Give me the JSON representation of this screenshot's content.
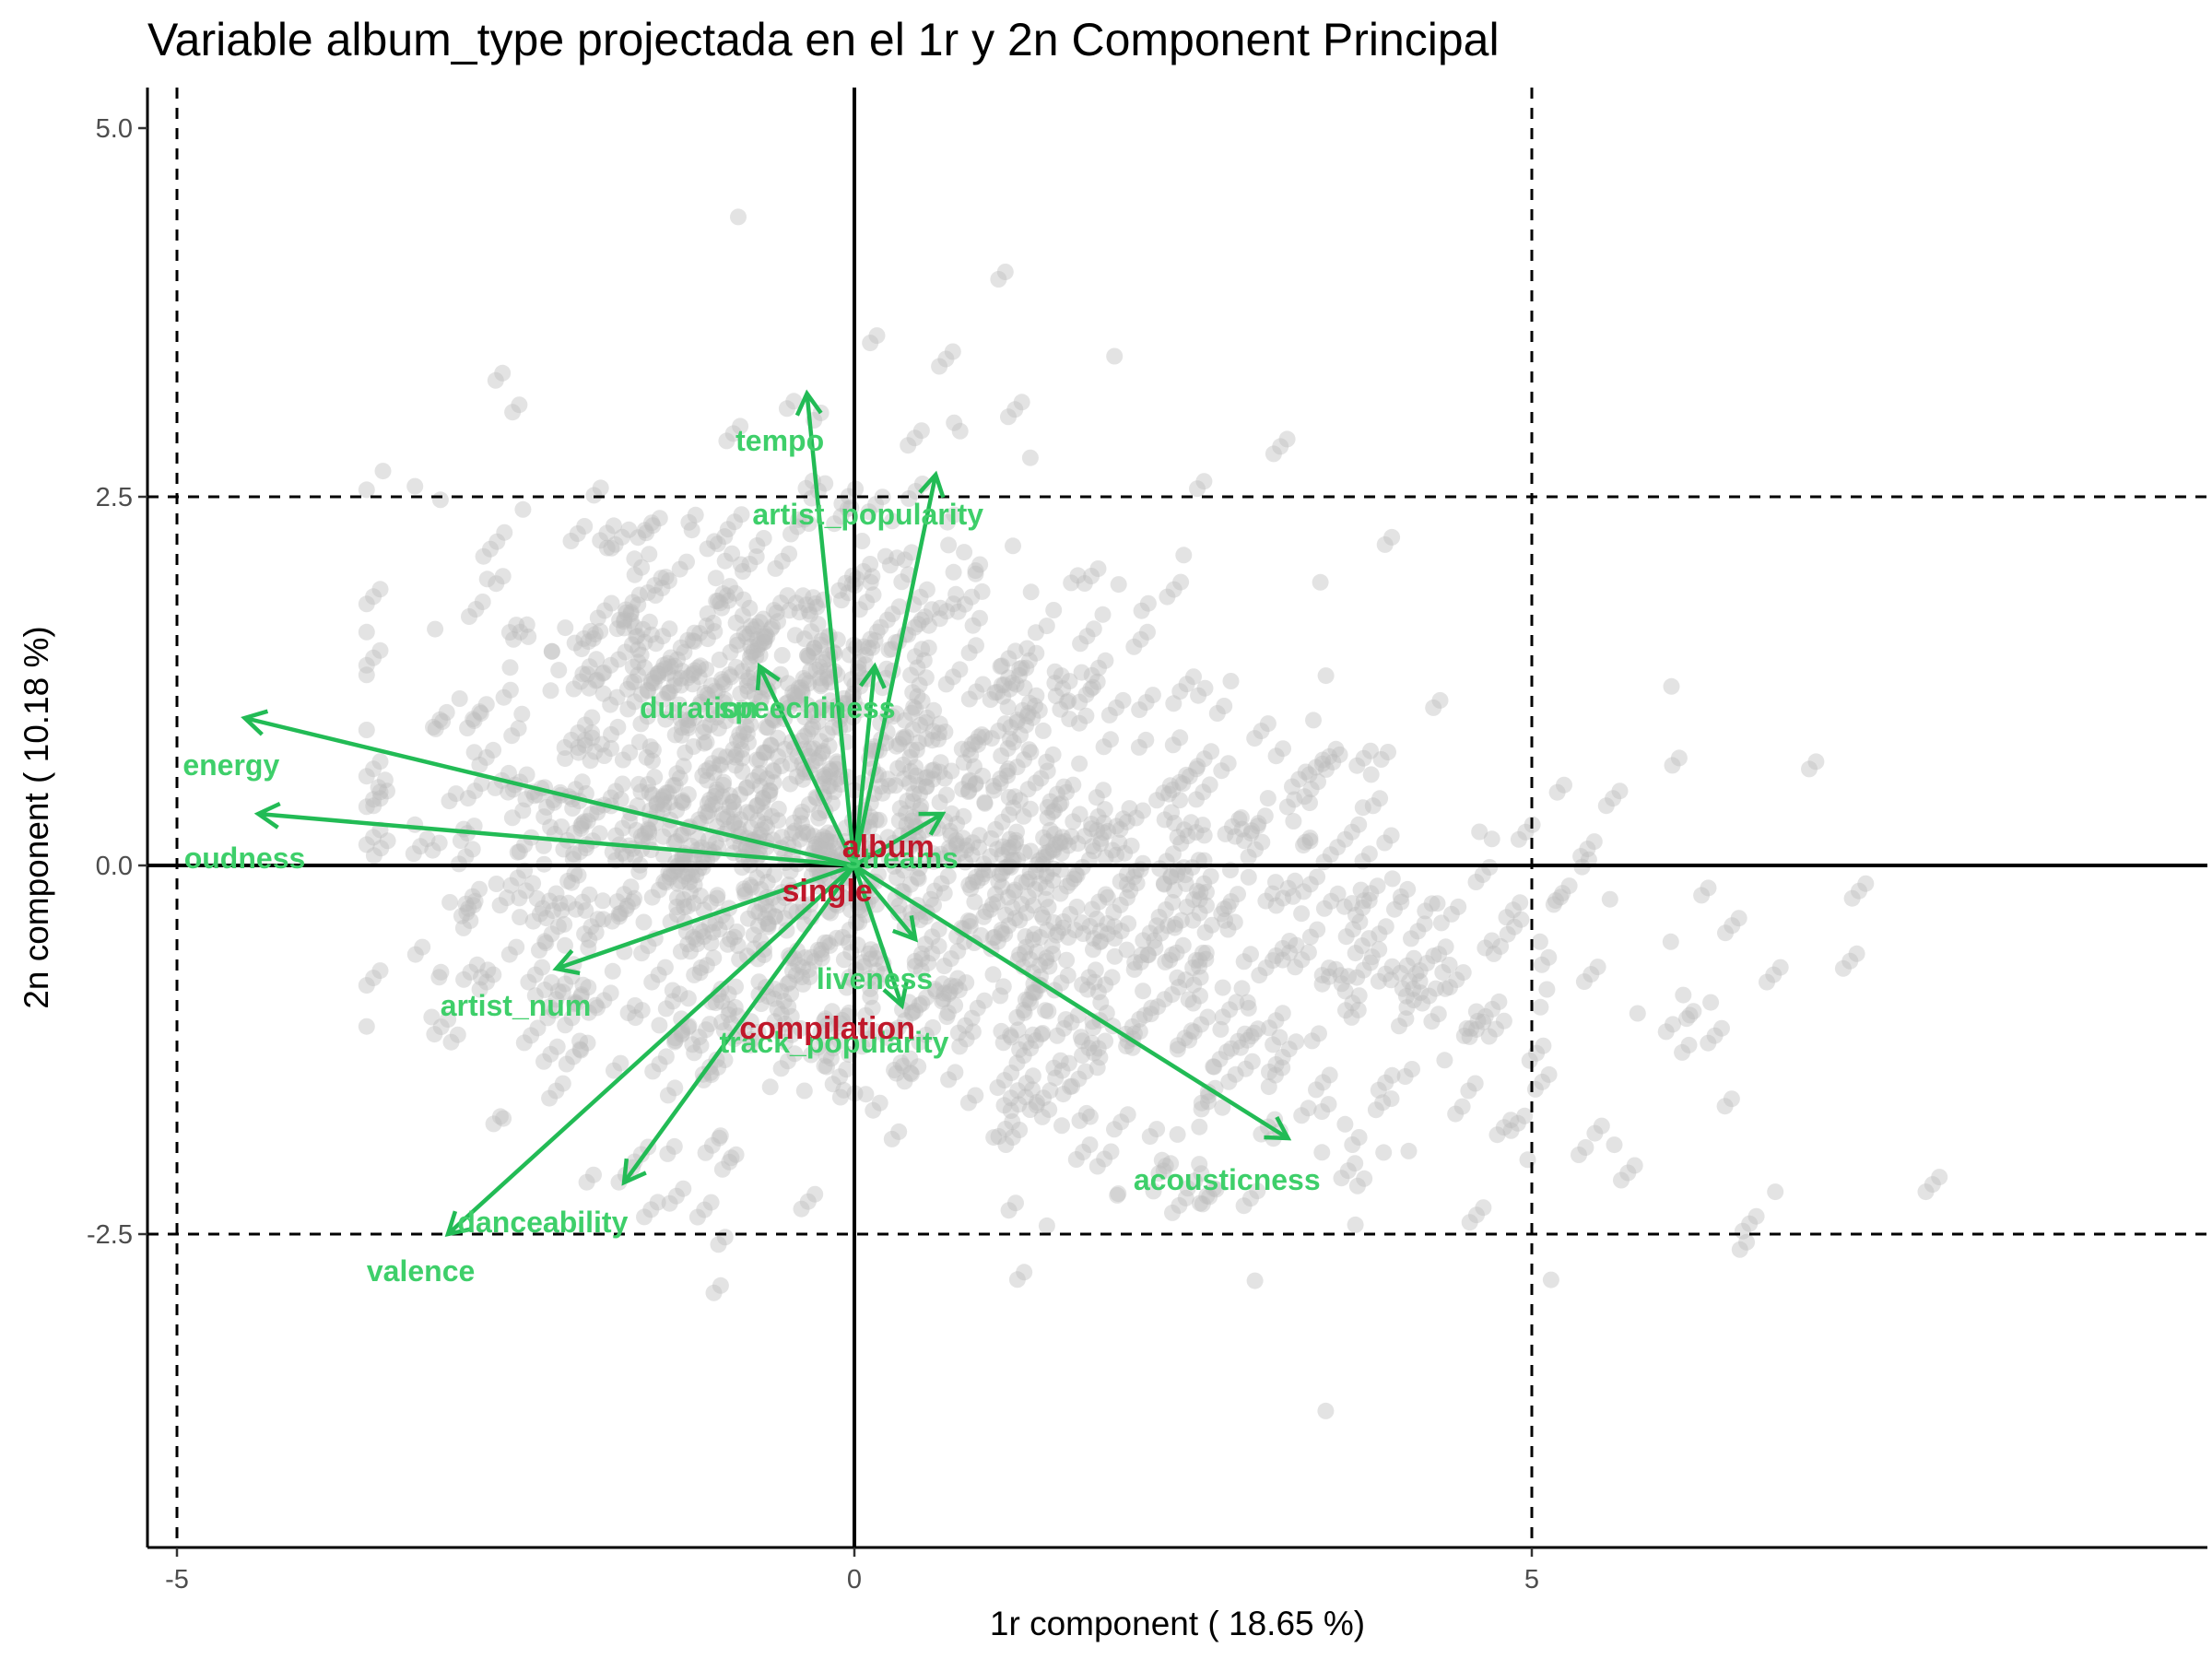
{
  "title": "Variable album_type projectada en el 1r y 2n Component Principal",
  "colors": {
    "arrow": "#22bb55",
    "variable_label": "#3ecf6a",
    "category_label": "#c0182b",
    "points": "#bdbdbd",
    "axis": "#000000",
    "tick_text": "#4d4d4d"
  },
  "chart_data": {
    "type": "scatter",
    "title": "Variable album_type projectada en el 1r y 2n Component Principal",
    "xlabel": "1r component ( 18.65 %)",
    "ylabel": "2n component ( 10.18 %)",
    "xlim": [
      -5.25,
      9.9
    ],
    "ylim": [
      -4.6,
      5.25
    ],
    "x_ticks": [
      -5,
      0,
      5
    ],
    "x_tick_labels": [
      "-5",
      "0",
      "5"
    ],
    "y_ticks": [
      5.0,
      2.5,
      0.0,
      -2.5
    ],
    "y_tick_labels": [
      "5.0",
      "2.5",
      "0.0",
      "-2.5"
    ],
    "grid": false,
    "reference_lines": {
      "solid": {
        "x": [
          0
        ],
        "y": [
          0
        ]
      },
      "dashed": {
        "x": [
          -5,
          5
        ],
        "y": [
          2.5,
          -2.5
        ]
      }
    },
    "variables": [
      {
        "name": "energy",
        "x": -4.5,
        "y": 1.0
      },
      {
        "name": "loudness",
        "x": -4.4,
        "y": 0.35
      },
      {
        "name": "tempo",
        "x": -0.35,
        "y": 3.2
      },
      {
        "name": "artist_popularity",
        "x": 0.6,
        "y": 2.65
      },
      {
        "name": "duration",
        "x": -0.7,
        "y": 1.35
      },
      {
        "name": "speechiness",
        "x": 0.15,
        "y": 1.35
      },
      {
        "name": "streams",
        "x": 0.65,
        "y": 0.35
      },
      {
        "name": "liveness",
        "x": 0.45,
        "y": -0.5
      },
      {
        "name": "track_popularity",
        "x": 0.35,
        "y": -0.95
      },
      {
        "name": "artist_num",
        "x": -2.2,
        "y": -0.7
      },
      {
        "name": "acousticness",
        "x": 3.2,
        "y": -1.85
      },
      {
        "name": "danceability",
        "x": -1.7,
        "y": -2.15
      },
      {
        "name": "valence",
        "x": -3.0,
        "y": -2.5
      }
    ],
    "variable_labels": [
      {
        "text": "energy",
        "x": -4.6,
        "y": 0.68
      },
      {
        "text": "oudness",
        "x": -4.5,
        "y": 0.05
      },
      {
        "text": "tempo",
        "x": -0.55,
        "y": 2.88
      },
      {
        "text": "artist_popularity",
        "x": 0.1,
        "y": 2.38
      },
      {
        "text": "duration",
        "x": -1.15,
        "y": 1.07
      },
      {
        "text": "speechiness",
        "x": -0.35,
        "y": 1.07
      },
      {
        "text": "streams",
        "x": 0.35,
        "y": 0.05
      },
      {
        "text": "liveness",
        "x": 0.15,
        "y": -0.77
      },
      {
        "text": "track_popularity",
        "x": -0.15,
        "y": -1.2
      },
      {
        "text": "artist_num",
        "x": -2.5,
        "y": -0.95
      },
      {
        "text": "acousticness",
        "x": 2.75,
        "y": -2.13
      },
      {
        "text": "danceability",
        "x": -2.3,
        "y": -2.42
      },
      {
        "text": "valence",
        "x": -3.2,
        "y": -2.75
      }
    ],
    "categories": [
      {
        "name": "album",
        "x": 0.25,
        "y": 0.13
      },
      {
        "name": "single",
        "x": -0.2,
        "y": -0.17
      },
      {
        "name": "compilation",
        "x": -0.2,
        "y": -1.1
      }
    ],
    "points_note": "individuals"
  }
}
